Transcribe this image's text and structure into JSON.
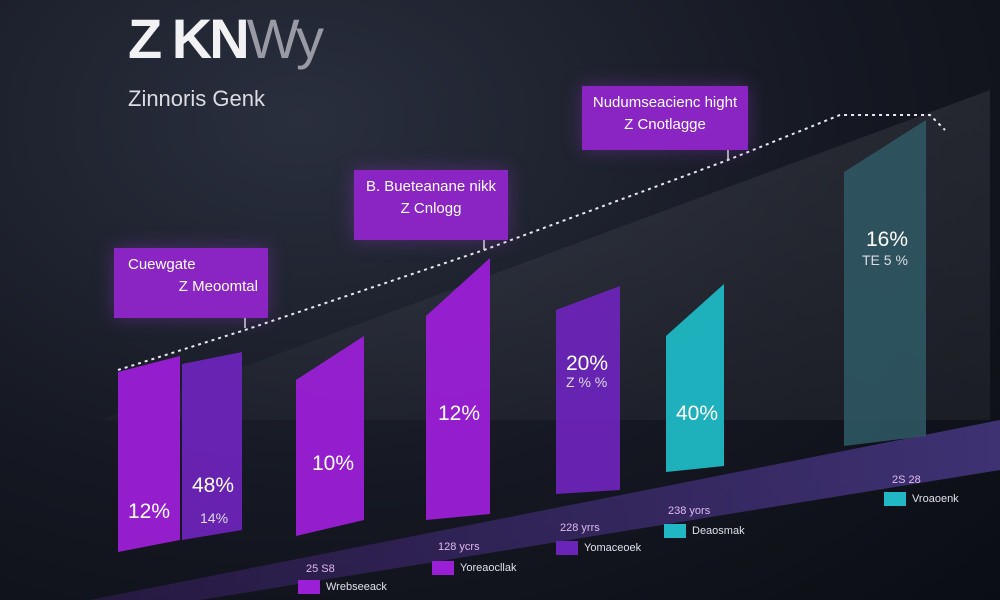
{
  "header": {
    "logo_main": "Z KN",
    "logo_tail": "Wy",
    "subtitle": "Zinnoris Genk"
  },
  "colors": {
    "purple": "#9b1fd6",
    "violet": "#6b24b8",
    "teal": "#1fb8c4",
    "slate": "#2f5b66",
    "callout": "#8a25c4"
  },
  "chart_data": {
    "type": "bar",
    "title": "",
    "xlabel": "",
    "ylabel": "",
    "bars": [
      {
        "label_main": "12%",
        "label_sub": "",
        "color": "purple"
      },
      {
        "label_main": "48%",
        "label_sub": "14%",
        "color": "violet"
      },
      {
        "label_main": "10%",
        "label_sub": "",
        "color": "purple"
      },
      {
        "label_main": "12%",
        "label_sub": "",
        "color": "purple"
      },
      {
        "label_main": "20%",
        "label_sub": "Z % %",
        "color": "violet"
      },
      {
        "label_main": "40%",
        "label_sub": "",
        "color": "teal"
      },
      {
        "label_main": "16%",
        "label_sub": "TE 5 %",
        "color": "slate"
      }
    ],
    "callouts": [
      {
        "line1": "Cuewgate",
        "line2": "Z Meoomtal"
      },
      {
        "line1": "B. Bueteanane nikk",
        "line2": "Z Cnlogg"
      },
      {
        "line1": "Nudumseacienc hight",
        "line2": "Z Cnotlagge"
      }
    ],
    "x_ticks": [
      "25 S8",
      "128 ycrs",
      "228 yrrs",
      "238 yors",
      "2S 28"
    ],
    "legend": [
      {
        "label": "Wrebseeack",
        "color": "purple"
      },
      {
        "label": "Yoreaocllak",
        "color": "purple"
      },
      {
        "label": "Yomaceoek",
        "color": "violet"
      },
      {
        "label": "Deaosmak",
        "color": "teal"
      },
      {
        "label": "Vroaoenk",
        "color": "teal"
      }
    ],
    "grid": false,
    "legend_position": "bottom"
  }
}
